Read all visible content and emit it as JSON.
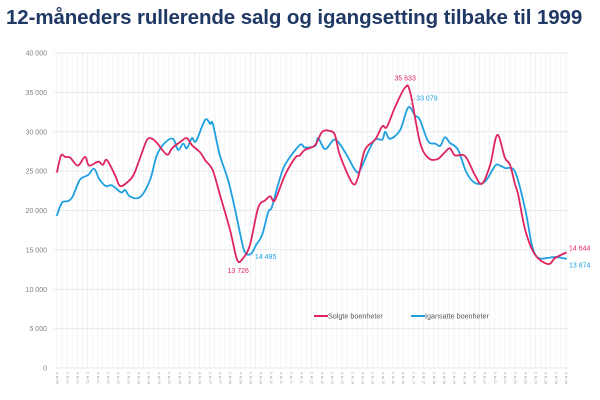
{
  "title": "12-måneders rullerende salg og igangsetting tilbake til 1999",
  "chart_data": {
    "type": "line",
    "title": "12-måneders rullerende salg og igangsetting tilbake til 1999",
    "xlabel": "",
    "ylabel": "",
    "x_unit": "quarter index (0 = 4. kv 1999, 100 = 4. kv 2024)",
    "xlim": [
      0,
      100
    ],
    "ylim": [
      0,
      40000
    ],
    "yticks": [
      0,
      5000,
      10000,
      15000,
      20000,
      25000,
      30000,
      35000,
      40000
    ],
    "ytick_labels": [
      "0",
      "5 000",
      "10 000",
      "15 000",
      "20 000",
      "25 000",
      "30 000",
      "35 000",
      "40 000"
    ],
    "xtick_labels": [
      "4. kv 99",
      "2. kv 00",
      "4. kv 00",
      "2. kv 01",
      "4. kv 01",
      "2. kv 02",
      "4. kv 02",
      "2. kv 03",
      "4. kv 03",
      "2. kv 04",
      "4. kv 04",
      "2. kv 05",
      "4. kv 05",
      "2. kv 06",
      "4. kv 06",
      "2. kv 07",
      "4. kv 07",
      "2. kv 08",
      "4. kv 08",
      "2. kv 09",
      "4. kv 09",
      "2. kv 10",
      "4. kv 10",
      "2. kv 11",
      "4. kv 11",
      "2. kv 12",
      "4. kv 12",
      "2. kv 13",
      "4. kv 13",
      "2. kv 14",
      "4. kv 14",
      "2. kv 15",
      "4. kv 15",
      "2. kv 16",
      "4. kv 16",
      "2. kv 17",
      "4. kv 17",
      "2. kv 18",
      "4. kv 18",
      "2. kv 19",
      "4. kv 19",
      "2. kv 20",
      "4. kv 20",
      "2. kv 21",
      "4. kv 21",
      "2. kv 22",
      "4. kv 22",
      "2. kv 23",
      "4. kv 23",
      "2. kv 24",
      "4. kv 24"
    ],
    "grid": true,
    "legend_position": "bottom-center",
    "series": [
      {
        "name": "Solgte boenheter",
        "color": "#e0245e",
        "points": [
          [
            0,
            24900
          ],
          [
            0.8,
            27000
          ],
          [
            1.6,
            26800
          ],
          [
            2.6,
            26700
          ],
          [
            4.1,
            25700
          ],
          [
            5.5,
            26800
          ],
          [
            6.3,
            25700
          ],
          [
            8.1,
            26200
          ],
          [
            9.0,
            25800
          ],
          [
            9.8,
            26400
          ],
          [
            11.4,
            24500
          ],
          [
            12.4,
            23100
          ],
          [
            14.0,
            23700
          ],
          [
            15.1,
            24600
          ],
          [
            16.5,
            27000
          ],
          [
            17.7,
            29000
          ],
          [
            18.7,
            29100
          ],
          [
            19.6,
            28600
          ],
          [
            21.6,
            27100
          ],
          [
            22.6,
            27900
          ],
          [
            24.2,
            28700
          ],
          [
            25.5,
            29200
          ],
          [
            26.5,
            28300
          ],
          [
            28.1,
            27400
          ],
          [
            29.1,
            26400
          ],
          [
            30.6,
            25100
          ],
          [
            32.0,
            22000
          ],
          [
            34.0,
            17500
          ],
          [
            35.4,
            13726
          ],
          [
            36.5,
            13900
          ],
          [
            37.9,
            15600
          ],
          [
            39.5,
            20300
          ],
          [
            40.9,
            21300
          ],
          [
            41.9,
            21800
          ],
          [
            42.8,
            21300
          ],
          [
            44.8,
            24500
          ],
          [
            46.8,
            26700
          ],
          [
            47.7,
            27000
          ],
          [
            48.7,
            27700
          ],
          [
            50.7,
            28300
          ],
          [
            52.1,
            30000
          ],
          [
            53.6,
            30100
          ],
          [
            54.6,
            29600
          ],
          [
            55.6,
            27000
          ],
          [
            58.0,
            23500
          ],
          [
            59.1,
            24100
          ],
          [
            60.5,
            27700
          ],
          [
            62.5,
            29000
          ],
          [
            63.9,
            30700
          ],
          [
            64.8,
            30600
          ],
          [
            66.4,
            33100
          ],
          [
            68.4,
            35633
          ],
          [
            69.4,
            35000
          ],
          [
            71.3,
            28700
          ],
          [
            72.9,
            26700
          ],
          [
            74.7,
            26500
          ],
          [
            76.2,
            27400
          ],
          [
            77.2,
            27900
          ],
          [
            78.2,
            27000
          ],
          [
            80.2,
            26900
          ],
          [
            82.1,
            24500
          ],
          [
            83.5,
            23400
          ],
          [
            85.1,
            25800
          ],
          [
            86.5,
            29600
          ],
          [
            88.0,
            26700
          ],
          [
            89.0,
            25800
          ],
          [
            90.0,
            23300
          ],
          [
            90.6,
            22000
          ],
          [
            92.0,
            17500
          ],
          [
            93.9,
            14400
          ],
          [
            96.5,
            13200
          ],
          [
            97.9,
            14000
          ],
          [
            100,
            14644
          ]
        ]
      },
      {
        "name": "Igansatte boenheter",
        "color": "#1ea0e0",
        "points": [
          [
            0,
            19400
          ],
          [
            1.0,
            21000
          ],
          [
            2.2,
            21200
          ],
          [
            3.1,
            21800
          ],
          [
            4.5,
            23900
          ],
          [
            6.1,
            24500
          ],
          [
            7.3,
            25300
          ],
          [
            8.3,
            24000
          ],
          [
            9.6,
            23100
          ],
          [
            10.8,
            23200
          ],
          [
            12.6,
            22300
          ],
          [
            13.4,
            22600
          ],
          [
            14.3,
            21800
          ],
          [
            16.3,
            21700
          ],
          [
            18.3,
            23900
          ],
          [
            19.6,
            27000
          ],
          [
            21.2,
            28600
          ],
          [
            22.8,
            29100
          ],
          [
            23.8,
            27700
          ],
          [
            24.8,
            28500
          ],
          [
            25.5,
            27900
          ],
          [
            26.5,
            29200
          ],
          [
            27.3,
            28800
          ],
          [
            29.1,
            31500
          ],
          [
            30.1,
            31000
          ],
          [
            30.6,
            31000
          ],
          [
            32.0,
            27000
          ],
          [
            33.6,
            23900
          ],
          [
            35.0,
            20100
          ],
          [
            36.0,
            17000
          ],
          [
            36.9,
            14700
          ],
          [
            38.1,
            14495
          ],
          [
            39.1,
            15600
          ],
          [
            40.3,
            16900
          ],
          [
            41.5,
            19800
          ],
          [
            42.2,
            20400
          ],
          [
            43.4,
            23200
          ],
          [
            44.8,
            25800
          ],
          [
            47.7,
            28300
          ],
          [
            48.7,
            28000
          ],
          [
            50.7,
            28200
          ],
          [
            51.3,
            29200
          ],
          [
            52.7,
            27800
          ],
          [
            54.6,
            29000
          ],
          [
            56.6,
            27400
          ],
          [
            58.6,
            25100
          ],
          [
            59.5,
            25100
          ],
          [
            61.1,
            27400
          ],
          [
            62.5,
            29000
          ],
          [
            63.9,
            29000
          ],
          [
            64.5,
            30000
          ],
          [
            65.4,
            29100
          ],
          [
            67.4,
            30200
          ],
          [
            69.0,
            33079
          ],
          [
            70.3,
            32100
          ],
          [
            71.3,
            31500
          ],
          [
            72.9,
            28800
          ],
          [
            74.3,
            28500
          ],
          [
            75.3,
            28200
          ],
          [
            76.2,
            29300
          ],
          [
            77.2,
            28600
          ],
          [
            78.8,
            27700
          ],
          [
            80.4,
            24900
          ],
          [
            82.1,
            23500
          ],
          [
            84.1,
            23700
          ],
          [
            86.1,
            25700
          ],
          [
            87.0,
            25700
          ],
          [
            88.0,
            25400
          ],
          [
            90.0,
            24900
          ],
          [
            92.0,
            20100
          ],
          [
            93.3,
            15600
          ],
          [
            94.5,
            14000
          ],
          [
            96.5,
            14000
          ],
          [
            97.9,
            14100
          ],
          [
            100,
            13874
          ]
        ]
      }
    ],
    "annotations": [
      {
        "series": "Solgte boenheter",
        "x": 68.4,
        "value": 35633,
        "label": "35 633"
      },
      {
        "series": "Igansatte boenheter",
        "x": 69.0,
        "value": 33079,
        "label": "33 079"
      },
      {
        "series": "Igansatte boenheter",
        "x": 38.1,
        "value": 14495,
        "label": "14 495"
      },
      {
        "series": "Solgte boenheter",
        "x": 35.4,
        "value": 13726,
        "label": "13 726"
      },
      {
        "series": "Solgte boenheter",
        "x": 100,
        "value": 14644,
        "label": "14 644"
      },
      {
        "series": "Igansatte boenheter",
        "x": 100,
        "value": 13874,
        "label": "13 874"
      }
    ]
  }
}
